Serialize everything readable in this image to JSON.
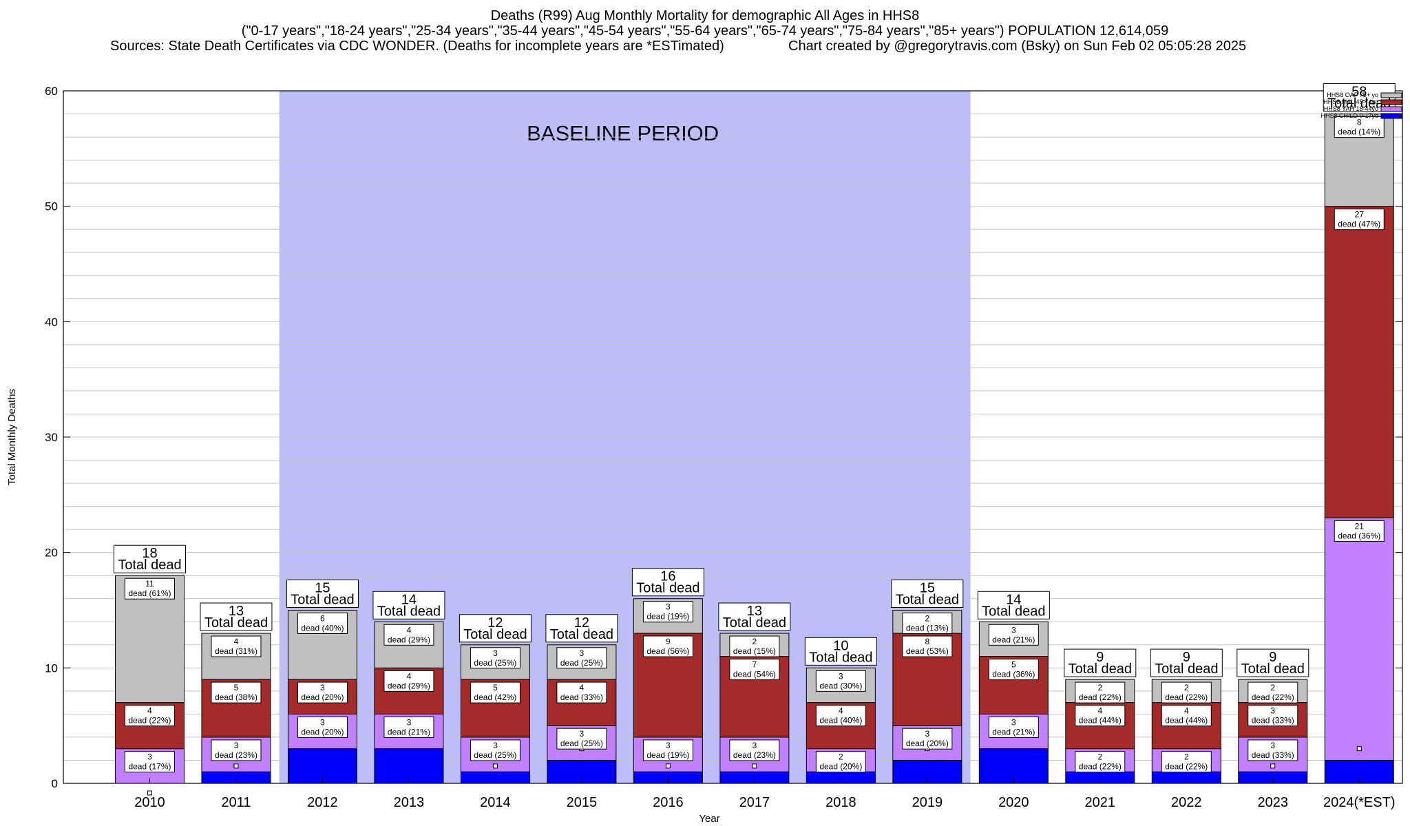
{
  "chart_data": {
    "type": "bar",
    "stacked": true,
    "title_lines": [
      "Deaths (R99) Aug Monthly Mortality for demographic All Ages in HHS8",
      "(\"0-17 years\",\"18-24 years\",\"25-34 years\",\"35-44 years\",\"45-54 years\",\"55-64 years\",\"65-74 years\",\"75-84 years\",\"85+ years\") POPULATION 12,614,059"
    ],
    "sources_text": "Sources: State Death Certificates via CDC WONDER. (Deaths for incomplete years are *ESTimated)",
    "credit_text": "Chart created by @gregorytravis.com (Bsky) on Sun Feb 02 05:05:28 2025",
    "xlabel": "Year",
    "ylabel": "Total Monthly Deaths",
    "ylim": [
      0,
      60
    ],
    "yticks": [
      0,
      10,
      20,
      30,
      40,
      50,
      60
    ],
    "grid": true,
    "legend_position": "top-right",
    "baseline": {
      "label": "BASELINE PERIOD",
      "start_category": "2012",
      "end_category": "2019",
      "color": "#bdbdfa"
    },
    "categories": [
      "2010",
      "2011",
      "2012",
      "2013",
      "2014",
      "2015",
      "2016",
      "2017",
      "2018",
      "2019",
      "2020",
      "2021",
      "2022",
      "2023",
      "2024(*EST)"
    ],
    "series": [
      {
        "name": "HHS8 CHILD 0-17yo",
        "color": "#0000ff",
        "values": [
          0,
          1,
          3,
          3,
          1,
          2,
          1,
          1,
          1,
          2,
          3,
          1,
          1,
          1,
          2
        ],
        "labels": [
          "",
          "",
          "",
          "",
          "",
          "",
          "",
          "",
          "",
          "",
          "",
          "",
          "",
          "",
          ""
        ]
      },
      {
        "name": "HHS8 YAH 18-44yo",
        "color": "#c080ff",
        "values": [
          3,
          3,
          3,
          3,
          3,
          3,
          3,
          3,
          2,
          3,
          3,
          2,
          2,
          3,
          21
        ],
        "labels": [
          "dead (17%)",
          "dead (23%)",
          "dead (20%)",
          "dead (21%)",
          "dead (25%)",
          "dead (25%)",
          "dead (19%)",
          "dead (23%)",
          "dead (20%)",
          "dead (20%)",
          "dead (21%)",
          "dead (22%)",
          "dead (22%)",
          "dead (33%)",
          "dead (36%)"
        ]
      },
      {
        "name": "HHS8 MAL 45-74yo",
        "color": "#a52a2a",
        "values": [
          4,
          5,
          3,
          4,
          5,
          4,
          9,
          7,
          4,
          8,
          5,
          4,
          4,
          3,
          27
        ],
        "labels": [
          "dead (22%)",
          "dead (38%)",
          "dead (20%)",
          "dead (29%)",
          "dead (42%)",
          "dead (33%)",
          "dead (56%)",
          "dead (54%)",
          "dead (40%)",
          "dead (53%)",
          "dead (36%)",
          "dead (44%)",
          "dead (44%)",
          "dead (33%)",
          "dead (47%)"
        ]
      },
      {
        "name": "HHS8 OAF 75+ yo",
        "color": "#c0c0c0",
        "values": [
          11,
          4,
          6,
          4,
          3,
          3,
          3,
          2,
          3,
          2,
          3,
          2,
          2,
          2,
          8
        ],
        "labels": [
          "dead (61%)",
          "dead (31%)",
          "dead (40%)",
          "dead (29%)",
          "dead (25%)",
          "dead (25%)",
          "dead (19%)",
          "dead (15%)",
          "dead (30%)",
          "dead (13%)",
          "dead (21%)",
          "dead (22%)",
          "dead (22%)",
          "dead (22%)",
          "dead (14%)"
        ]
      }
    ],
    "totals": [
      18,
      13,
      15,
      14,
      12,
      12,
      16,
      13,
      10,
      15,
      14,
      9,
      9,
      9,
      58
    ],
    "total_label": "Total dead"
  }
}
